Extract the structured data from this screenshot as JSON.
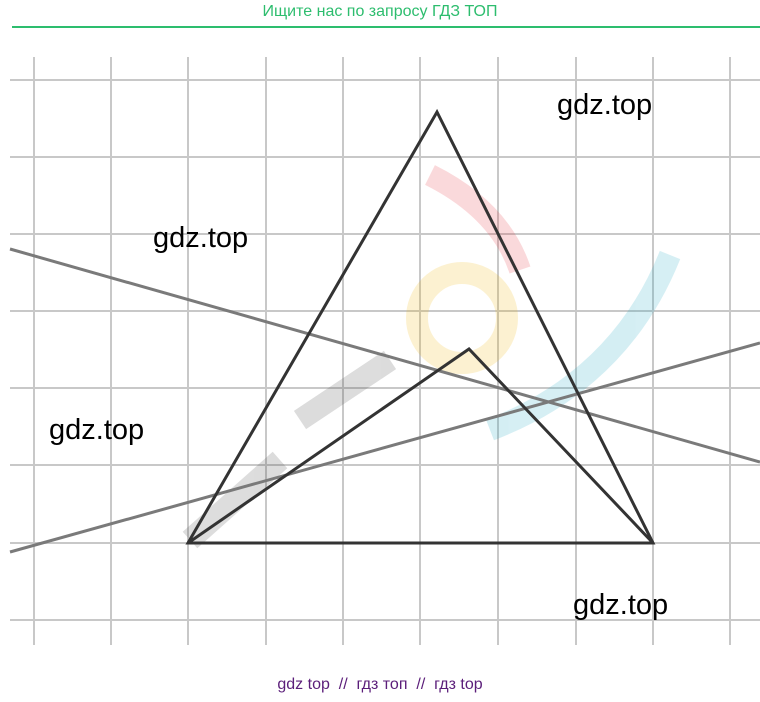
{
  "header": {
    "text": "Ищите нас по запросу ГДЗ ТОП"
  },
  "watermarks": [
    "gdz.top",
    "gdz.top",
    "gdz.top",
    "gdz.top"
  ],
  "footer": {
    "text": "gdz top  //  гдз топ  //  гдз top"
  }
}
